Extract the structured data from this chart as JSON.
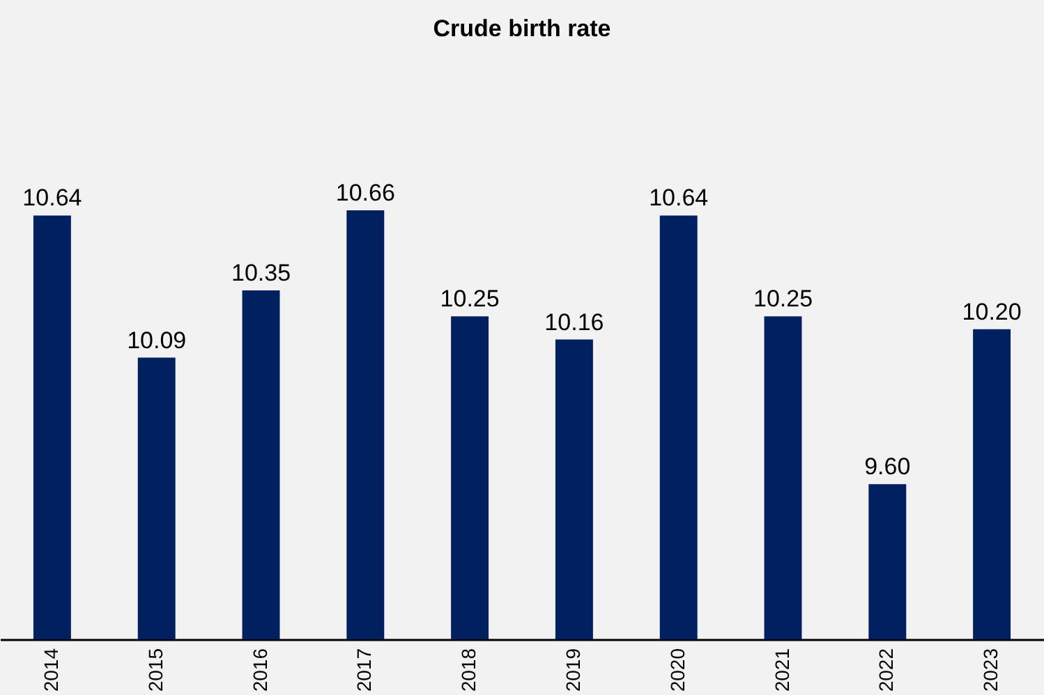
{
  "chart_data": {
    "type": "bar",
    "title": "Crude birth rate",
    "categories": [
      "2014",
      "2015",
      "2016",
      "2017",
      "2018",
      "2019",
      "2020",
      "2021",
      "2022",
      "2023"
    ],
    "values": [
      10.64,
      10.09,
      10.35,
      10.66,
      10.25,
      10.16,
      10.64,
      10.25,
      9.6,
      10.2
    ],
    "value_labels": [
      "10.64",
      "10.09",
      "10.35",
      "10.66",
      "10.25",
      "10.16",
      "10.64",
      "10.25",
      "9.60",
      "10.20"
    ],
    "color": "#002060",
    "ylim": [
      9,
      10.66
    ],
    "tick_labels": "x",
    "grid": false
  }
}
